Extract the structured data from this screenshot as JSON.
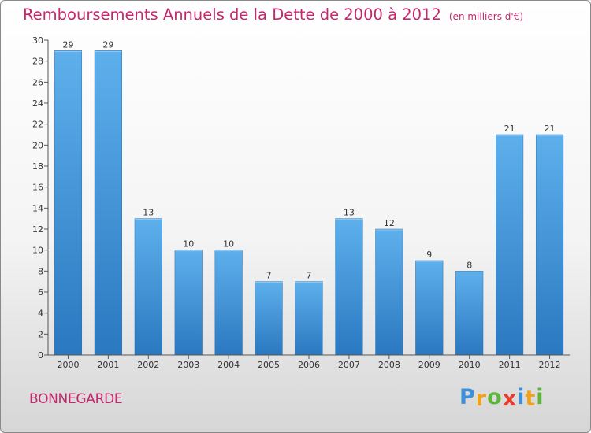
{
  "chart_data": {
    "type": "bar",
    "title": "Remboursements Annuels de la Dette de 2000 à 2012",
    "subtitle": "(en milliers d'€)",
    "categories": [
      "2000",
      "2001",
      "2002",
      "2003",
      "2004",
      "2005",
      "2006",
      "2007",
      "2008",
      "2009",
      "2010",
      "2011",
      "2012"
    ],
    "values": [
      29,
      29,
      13,
      10,
      10,
      7,
      7,
      13,
      12,
      9,
      8,
      21,
      21
    ],
    "ylim": [
      0,
      30
    ],
    "yticks": [
      0,
      2,
      4,
      6,
      8,
      10,
      12,
      14,
      16,
      18,
      20,
      22,
      24,
      26,
      28,
      30
    ],
    "xlabel": "",
    "ylabel": "",
    "grid": false,
    "bar_color": "#3a93d8"
  },
  "commune": "BONNEGARDE",
  "logo": {
    "letters": [
      "P",
      "r",
      "o",
      "x",
      "i",
      "t",
      "i"
    ],
    "colors": [
      "#3c8fd8",
      "#f0a21c",
      "#5fb53c",
      "#e63c2c",
      "#3c8fd8",
      "#f0a21c",
      "#5fb53c"
    ]
  },
  "colors": {
    "accent": "#c3286e",
    "bar": "#3a93d8"
  }
}
